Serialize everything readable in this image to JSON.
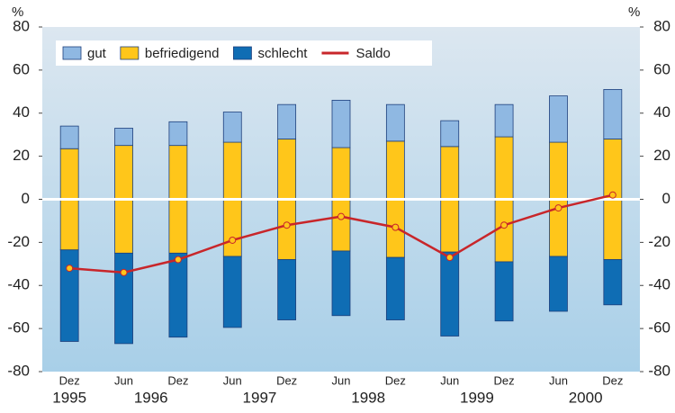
{
  "chart_data": {
    "type": "bar",
    "y_unit": "%",
    "categories": [
      "Dez",
      "Jun",
      "Dez",
      "Jun",
      "Dez",
      "Jun",
      "Dez",
      "Jun",
      "Dez",
      "Jun",
      "Dez"
    ],
    "years": [
      "1995",
      "1996",
      "1997",
      "1998",
      "1999",
      "2000"
    ],
    "series": [
      {
        "name": "gut",
        "type": "bar",
        "color": "#8fb8e2",
        "values": [
          10.5,
          8,
          11,
          14,
          16,
          22,
          17,
          12,
          15,
          21.5,
          23
        ]
      },
      {
        "name": "befriedigend",
        "type": "bar",
        "color": "#ffc61a",
        "values": [
          47,
          50,
          50,
          53,
          56,
          48,
          54,
          49,
          58,
          53,
          56
        ]
      },
      {
        "name": "schlecht",
        "type": "bar",
        "color": "#0f6db4",
        "values": [
          42.5,
          42,
          39,
          33,
          28,
          30,
          29,
          39,
          27.5,
          25.5,
          21
        ]
      },
      {
        "name": "Saldo",
        "type": "line",
        "color": "#c8262a",
        "values": [
          -32,
          -34,
          -28,
          -19,
          -12,
          -8,
          -13,
          -27,
          -12,
          -4,
          2
        ]
      }
    ],
    "ylim": [
      -80,
      80
    ],
    "yticks": [
      -80,
      -60,
      -40,
      -20,
      0,
      20,
      40,
      60,
      80
    ],
    "y2lim": [
      -80,
      80
    ],
    "y2ticks": [
      -80,
      -60,
      -40,
      -20,
      0,
      20,
      40,
      60,
      80
    ],
    "legend": "top-left"
  }
}
